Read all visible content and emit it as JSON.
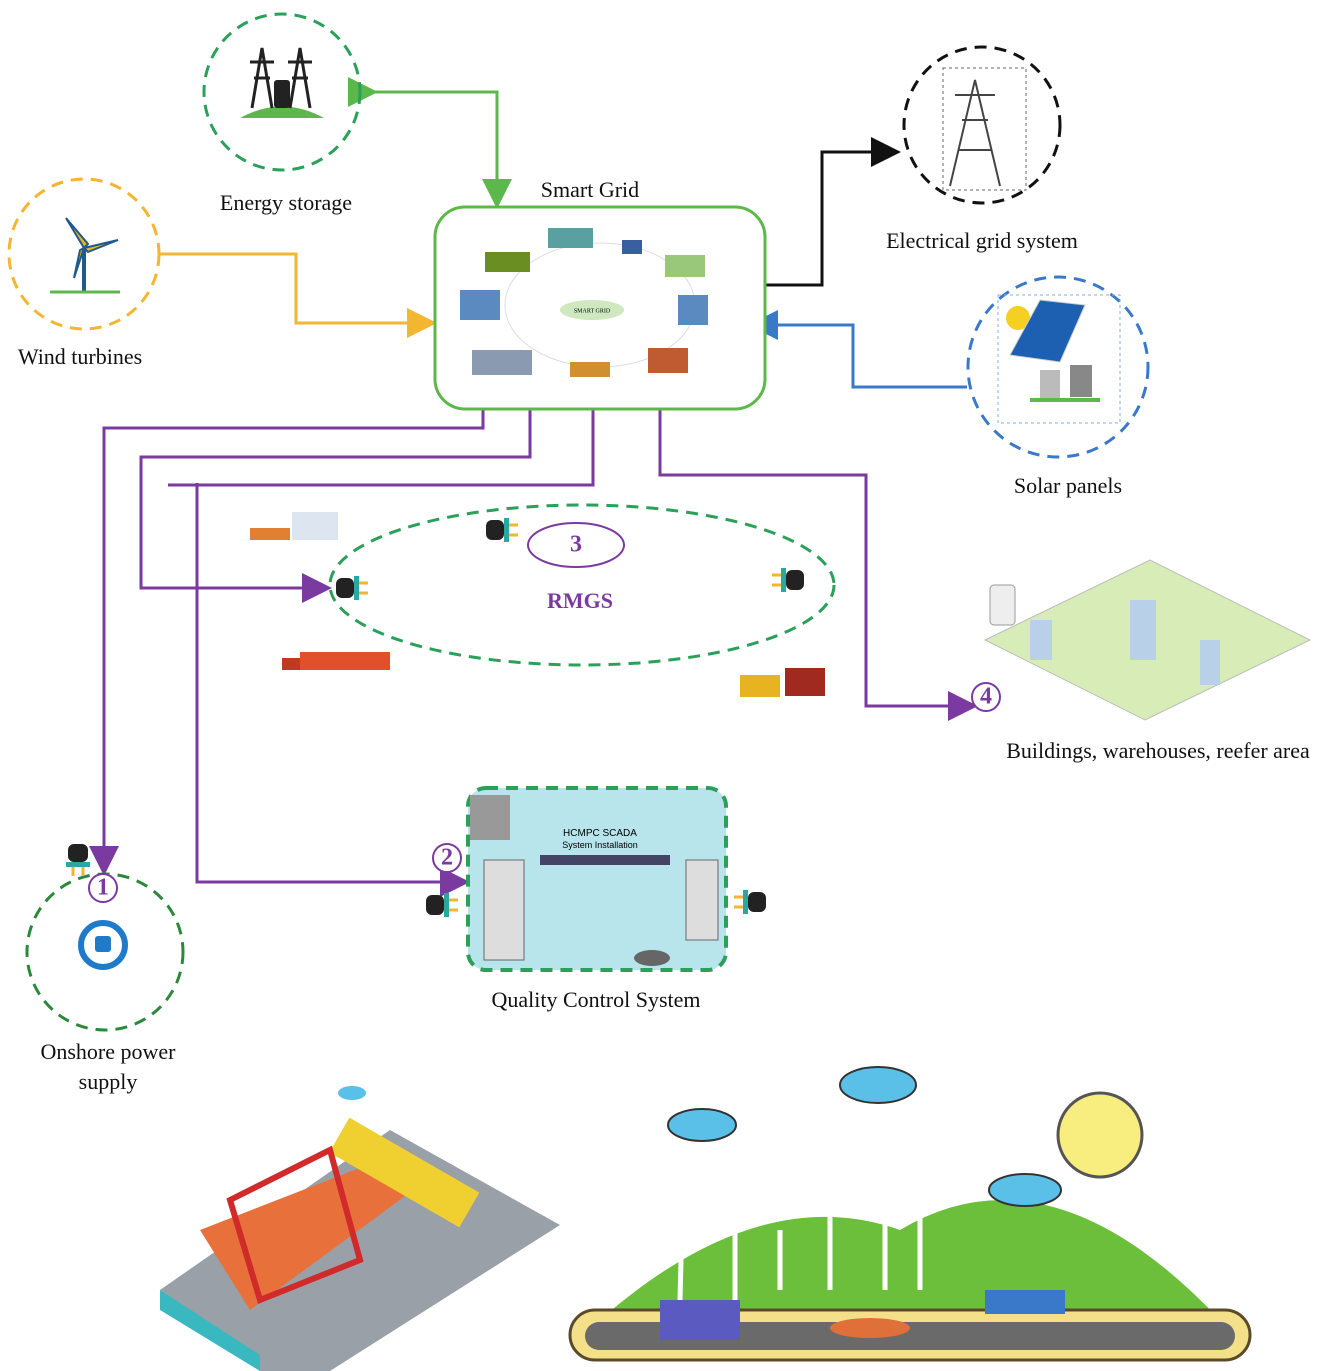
{
  "title": "Smart Grid",
  "hub_label": "SMART GRID",
  "nodes": [
    {
      "label": "Energy storage"
    },
    {
      "label": "Wind turbines"
    },
    {
      "label": "Electrical grid system"
    },
    {
      "label": "Solar panels"
    },
    {
      "label": "RMGS",
      "number": "3"
    },
    {
      "label": "Buildings, warehouses, reefer area",
      "number": "4"
    },
    {
      "label": "Quality Control System",
      "number": "2",
      "inner_title": "HCMPC SCADA",
      "inner_subtitle": "System Installation"
    },
    {
      "label_lines": [
        "Onshore power",
        "supply"
      ],
      "number": "1"
    }
  ]
}
